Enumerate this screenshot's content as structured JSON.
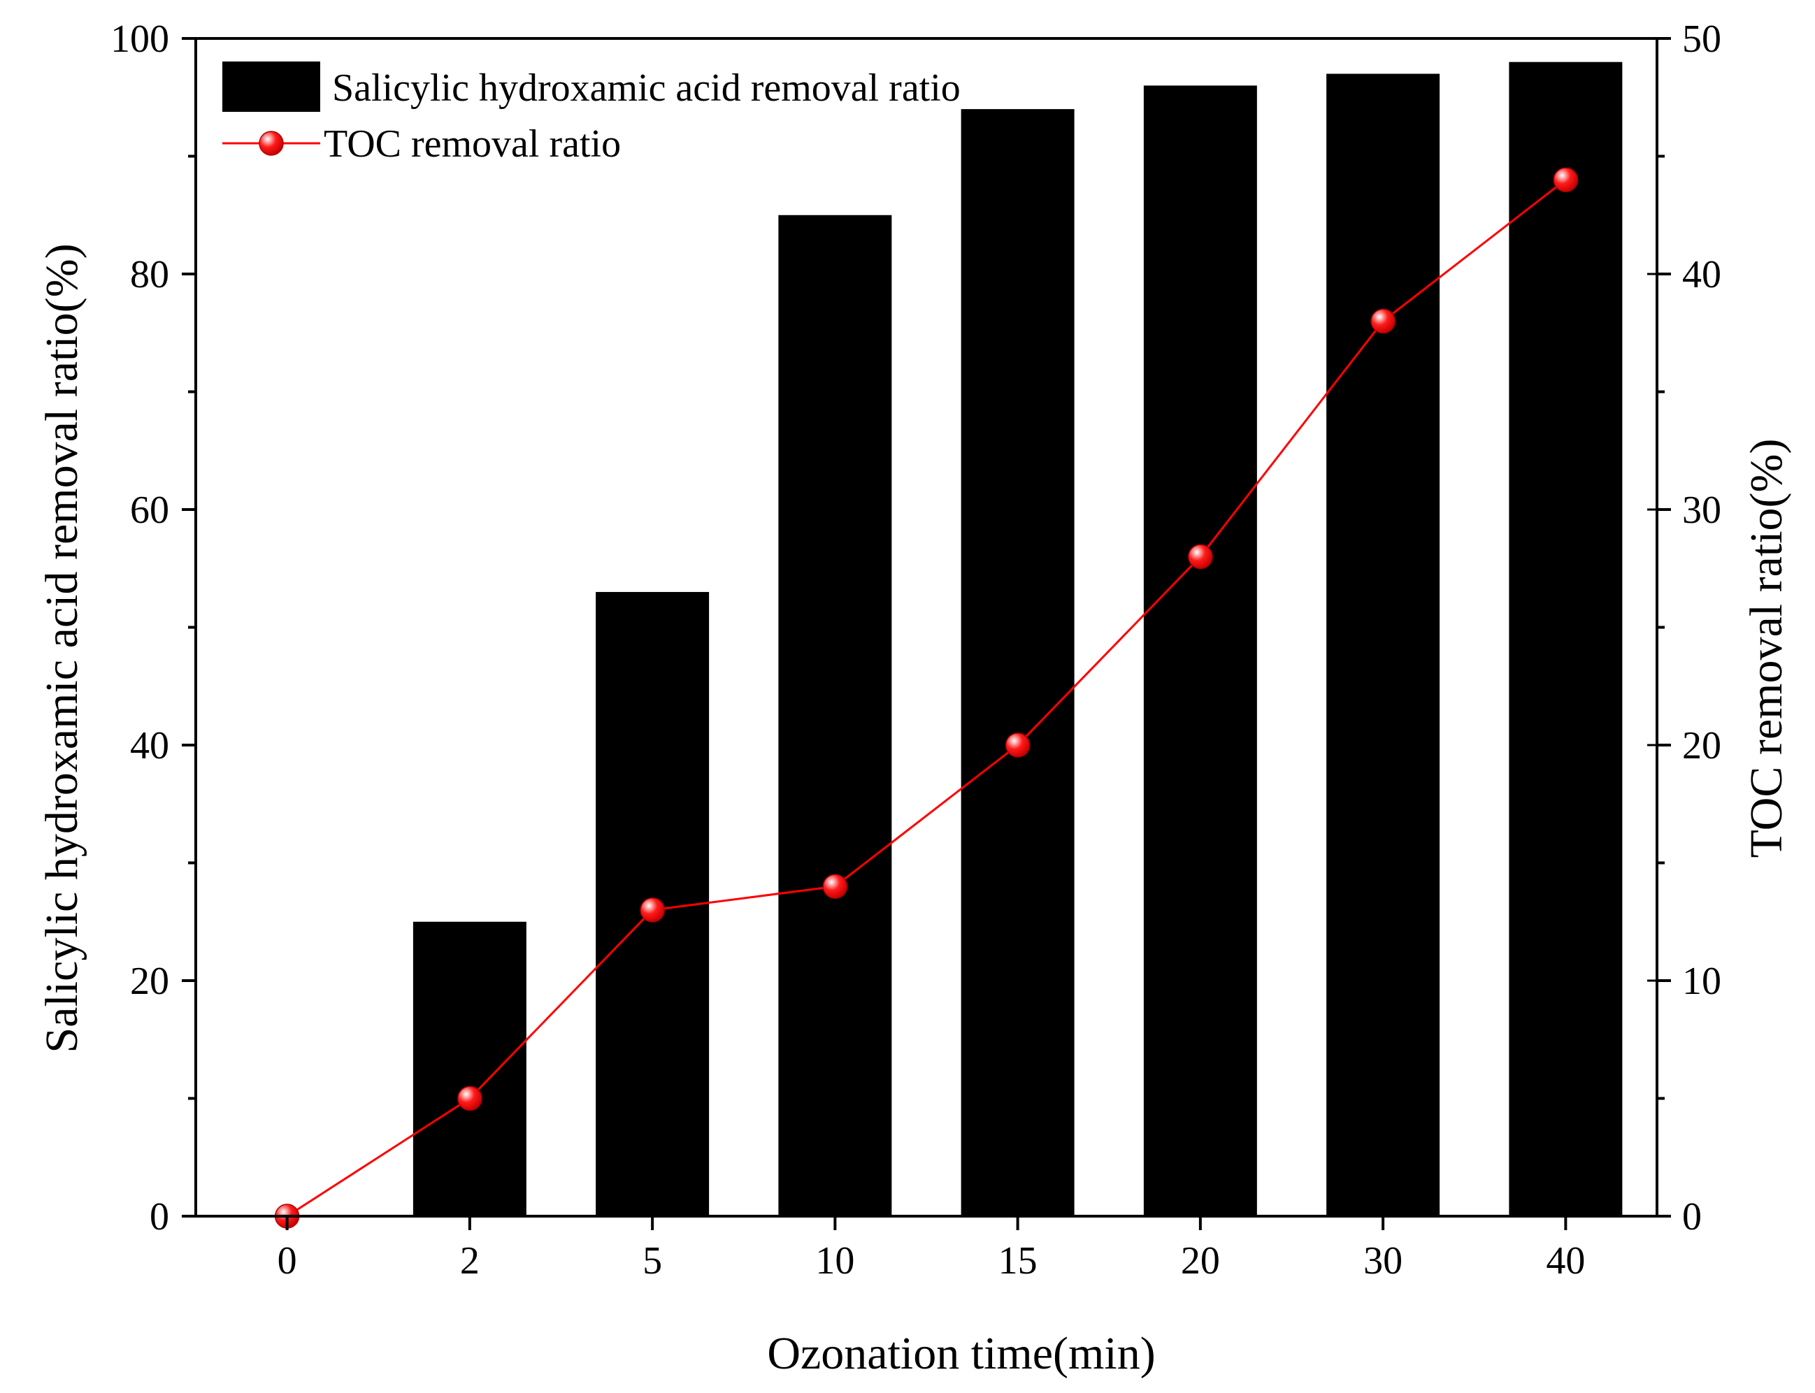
{
  "chart_data": {
    "type": "bar+line",
    "xlabel": "Ozonation time(min)",
    "ylabel_left": "Salicylic hydroxamic acid removal ratio(%)",
    "ylabel_right": "TOC removal ratio(%)",
    "categories": [
      "0",
      "2",
      "5",
      "10",
      "15",
      "20",
      "30",
      "40"
    ],
    "ylim_left": [
      0,
      100
    ],
    "ylim_right": [
      0,
      50
    ],
    "yticks_left": [
      0,
      20,
      40,
      60,
      80,
      100
    ],
    "yticks_right": [
      0,
      10,
      20,
      30,
      40,
      50
    ],
    "grid": false,
    "legend_position": "top-left",
    "series": [
      {
        "name": "Salicylic hydroxamic acid removal ratio",
        "type": "bar",
        "axis": "left",
        "color": "#000000",
        "values": [
          0,
          25,
          53,
          85,
          94,
          96,
          97,
          98
        ]
      },
      {
        "name": "TOC removal ratio",
        "type": "line",
        "axis": "right",
        "color": "#ff0000",
        "marker": "circle",
        "values": [
          0,
          5,
          13,
          14,
          20,
          28,
          38,
          44
        ]
      }
    ]
  }
}
